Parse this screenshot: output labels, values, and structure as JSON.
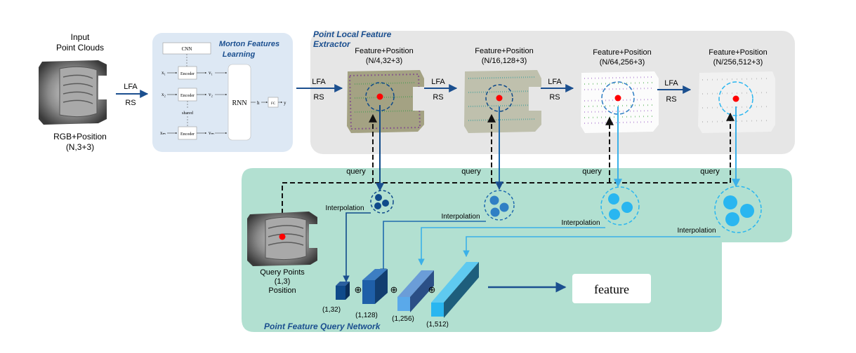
{
  "input": {
    "title_line1": "Input",
    "title_line2": "Point Clouds",
    "sub_line1": "RGB+Position",
    "sub_line2": "(N,3+3)",
    "arrow_top": "LFA",
    "arrow_bottom": "RS"
  },
  "morton": {
    "title_line1": "Morton Features",
    "title_line2": "Learning",
    "cnn": "CNN",
    "encoder": "Encoder",
    "shared": "shared",
    "rnn": "RNN",
    "h": "h",
    "fc": "FC",
    "y": "y",
    "x1": "x₁",
    "x2": "x₂",
    "xm": "xₘ",
    "v1": "v₁",
    "v2": "v₂",
    "vm": "vₘ"
  },
  "extractor": {
    "title_line1": "Point Local Feature",
    "title_line2": "Extractor",
    "stages": [
      {
        "label": "Feature+Position",
        "dims": "(N/4,32+3)"
      },
      {
        "label": "Feature+Position",
        "dims": "(N/16,128+3)"
      },
      {
        "label": "Feature+Position",
        "dims": "(N/64,256+3)"
      },
      {
        "label": "Feature+Position",
        "dims": "(N/256,512+3)"
      }
    ],
    "arrow_top": "LFA",
    "arrow_bottom": "RS"
  },
  "query_net": {
    "title": "Point Feature Query Network",
    "query": "query",
    "interpolation": "Interpolation",
    "query_points_line1": "Query Points",
    "query_points_line2": "(1,3)",
    "query_points_line3": "Position",
    "blocks": [
      "(1,32)",
      "(1,128)",
      "(1,256)",
      "(1,512)"
    ],
    "plus": "⊕",
    "output": "feature"
  },
  "colors": {
    "dark_blue": "#0f4a8a",
    "mid_blue": "#2f7fc4",
    "light_blue": "#29b6f0",
    "teal_bg": "#b2e0d1",
    "gray_bg": "#e6e6e6",
    "morton_bg": "#dde8f4",
    "red_point": "#ff0000"
  }
}
